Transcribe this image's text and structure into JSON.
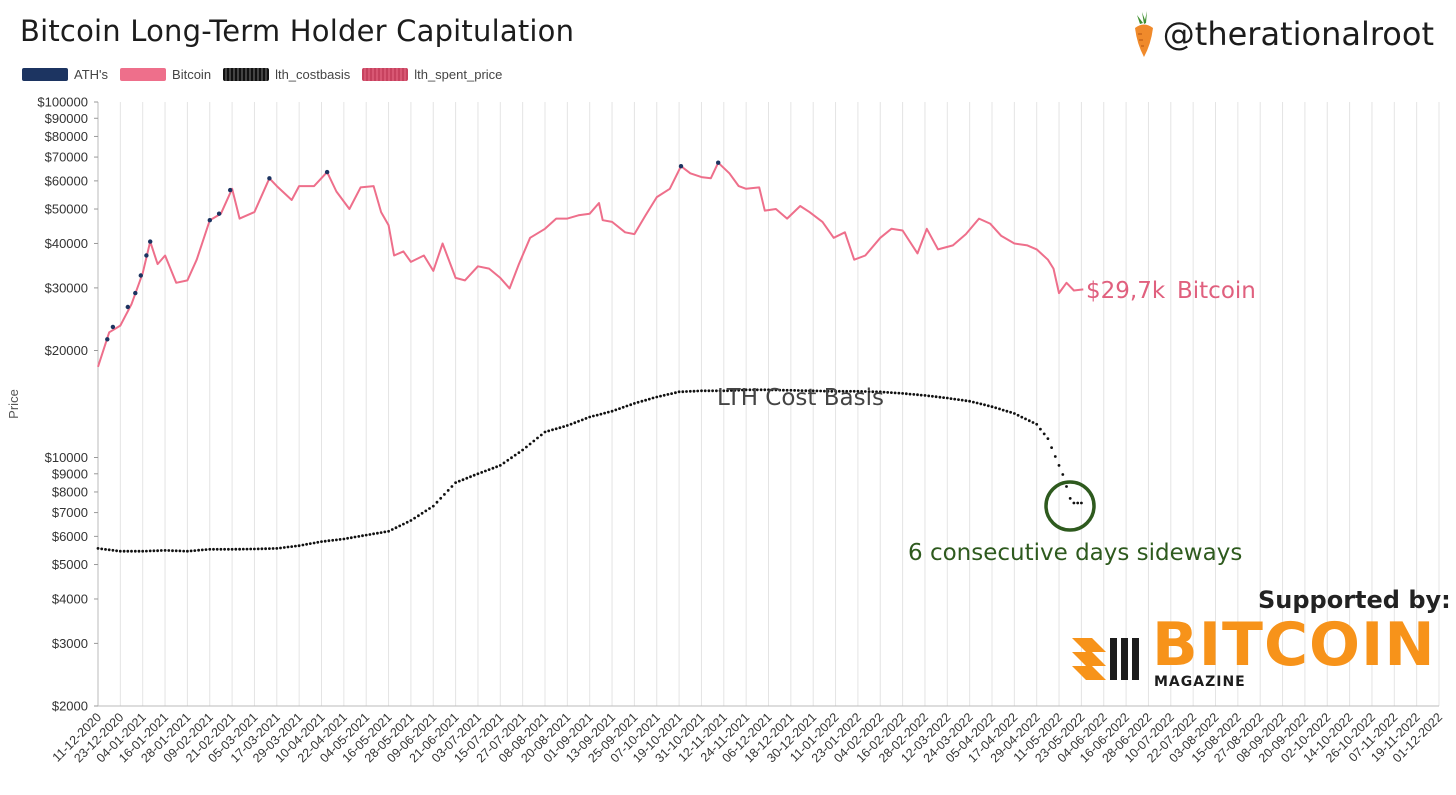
{
  "header": {
    "title": "Bitcoin Long-Term Holder Capitulation",
    "handle": "@therationalroot",
    "logo_icon": "carrot-icon"
  },
  "legend": [
    {
      "label": "ATH's",
      "color": "#1c3461"
    },
    {
      "label": "Bitcoin",
      "color": "#ee6f8b"
    },
    {
      "label": "lth_costbasis",
      "color": "#111111"
    },
    {
      "label": "lth_spent_price",
      "color": "#c7425f"
    }
  ],
  "annotations": {
    "price_label": "$29,7k",
    "price_series_label": "Bitcoin",
    "cost_basis_label": "LTH Cost Basis",
    "sideways_label": "6 consecutive days sideways"
  },
  "sponsor": {
    "supported_by": "Supported by:",
    "name": "BITCOIN",
    "sub": "MAGAZINE",
    "color": "#f7931a"
  },
  "chart_data": {
    "type": "line",
    "yscale": "log",
    "ylabel": "Price",
    "ylim": [
      2000,
      100000
    ],
    "y_ticks": [
      {
        "v": 100000,
        "label": "$100000"
      },
      {
        "v": 90000,
        "label": "$90000"
      },
      {
        "v": 80000,
        "label": "$80000"
      },
      {
        "v": 70000,
        "label": "$70000"
      },
      {
        "v": 60000,
        "label": "$60000"
      },
      {
        "v": 50000,
        "label": "$50000"
      },
      {
        "v": 40000,
        "label": "$40000"
      },
      {
        "v": 30000,
        "label": "$30000"
      },
      {
        "v": 20000,
        "label": "$20000"
      },
      {
        "v": 10000,
        "label": "$10000"
      },
      {
        "v": 9000,
        "label": "$9000"
      },
      {
        "v": 8000,
        "label": "$8000"
      },
      {
        "v": 7000,
        "label": "$7000"
      },
      {
        "v": 6000,
        "label": "$6000"
      },
      {
        "v": 5000,
        "label": "$5000"
      },
      {
        "v": 4000,
        "label": "$4000"
      },
      {
        "v": 3000,
        "label": "$3000"
      },
      {
        "v": 2000,
        "label": "$2000"
      }
    ],
    "x_ticks": [
      "11-12-2020",
      "23-12-2020",
      "04-01-2021",
      "16-01-2021",
      "28-01-2021",
      "09-02-2021",
      "21-02-2021",
      "05-03-2021",
      "17-03-2021",
      "29-03-2021",
      "10-04-2021",
      "22-04-2021",
      "04-05-2021",
      "16-05-2021",
      "28-05-2021",
      "09-06-2021",
      "21-06-2021",
      "03-07-2021",
      "15-07-2021",
      "27-07-2021",
      "08-08-2021",
      "20-08-2021",
      "01-09-2021",
      "13-09-2021",
      "25-09-2021",
      "07-10-2021",
      "19-10-2021",
      "31-10-2021",
      "12-11-2021",
      "24-11-2021",
      "06-12-2021",
      "18-12-2021",
      "30-12-2021",
      "11-01-2022",
      "23-01-2022",
      "04-02-2022",
      "16-02-2022",
      "28-02-2022",
      "12-03-2022",
      "24-03-2022",
      "05-04-2022",
      "17-04-2022",
      "29-04-2022",
      "11-05-2022",
      "23-05-2022",
      "04-06-2022",
      "16-06-2022",
      "28-06-2022",
      "10-07-2022",
      "22-07-2022",
      "03-08-2022",
      "15-08-2022",
      "27-08-2022",
      "08-09-2022",
      "20-09-2022",
      "02-10-2022",
      "14-10-2022",
      "26-10-2022",
      "07-11-2022",
      "19-11-2022",
      "01-12-2022"
    ],
    "grid": true,
    "legend_position": "top-left",
    "series": [
      {
        "name": "Bitcoin",
        "color": "#ee6f8b",
        "points": [
          [
            "11-12-2020",
            18000
          ],
          [
            "17-12-2020",
            22500
          ],
          [
            "23-12-2020",
            23500
          ],
          [
            "29-12-2020",
            27000
          ],
          [
            "04-01-2021",
            33000
          ],
          [
            "08-01-2021",
            40500
          ],
          [
            "12-01-2021",
            35000
          ],
          [
            "16-01-2021",
            37000
          ],
          [
            "22-01-2021",
            31000
          ],
          [
            "28-01-2021",
            31500
          ],
          [
            "02-02-2021",
            36000
          ],
          [
            "09-02-2021",
            46500
          ],
          [
            "15-02-2021",
            48500
          ],
          [
            "21-02-2021",
            57000
          ],
          [
            "25-02-2021",
            47000
          ],
          [
            "01-03-2021",
            48000
          ],
          [
            "05-03-2021",
            49000
          ],
          [
            "13-03-2021",
            61000
          ],
          [
            "17-03-2021",
            58000
          ],
          [
            "25-03-2021",
            53000
          ],
          [
            "29-03-2021",
            58000
          ],
          [
            "06-04-2021",
            58000
          ],
          [
            "13-04-2021",
            63500
          ],
          [
            "18-04-2021",
            56000
          ],
          [
            "25-04-2021",
            50000
          ],
          [
            "01-05-2021",
            57500
          ],
          [
            "08-05-2021",
            58000
          ],
          [
            "12-05-2021",
            49000
          ],
          [
            "16-05-2021",
            45000
          ],
          [
            "19-05-2021",
            37000
          ],
          [
            "24-05-2021",
            38000
          ],
          [
            "28-05-2021",
            35500
          ],
          [
            "04-06-2021",
            37000
          ],
          [
            "09-06-2021",
            33500
          ],
          [
            "14-06-2021",
            40000
          ],
          [
            "21-06-2021",
            32000
          ],
          [
            "26-06-2021",
            31500
          ],
          [
            "03-07-2021",
            34500
          ],
          [
            "09-07-2021",
            34000
          ],
          [
            "15-07-2021",
            32000
          ],
          [
            "20-07-2021",
            29900
          ],
          [
            "25-07-2021",
            35000
          ],
          [
            "31-07-2021",
            41500
          ],
          [
            "08-08-2021",
            44000
          ],
          [
            "14-08-2021",
            47000
          ],
          [
            "20-08-2021",
            47000
          ],
          [
            "26-08-2021",
            48000
          ],
          [
            "01-09-2021",
            48500
          ],
          [
            "06-09-2021",
            52000
          ],
          [
            "08-09-2021",
            46500
          ],
          [
            "13-09-2021",
            46000
          ],
          [
            "20-09-2021",
            43000
          ],
          [
            "25-09-2021",
            42500
          ],
          [
            "01-10-2021",
            48000
          ],
          [
            "07-10-2021",
            54000
          ],
          [
            "14-10-2021",
            57000
          ],
          [
            "20-10-2021",
            66000
          ],
          [
            "25-10-2021",
            63000
          ],
          [
            "31-10-2021",
            61500
          ],
          [
            "05-11-2021",
            61000
          ],
          [
            "09-11-2021",
            67500
          ],
          [
            "15-11-2021",
            63000
          ],
          [
            "20-11-2021",
            58000
          ],
          [
            "24-11-2021",
            57000
          ],
          [
            "01-12-2021",
            57500
          ],
          [
            "04-12-2021",
            49500
          ],
          [
            "10-12-2021",
            50000
          ],
          [
            "16-12-2021",
            47000
          ],
          [
            "23-12-2021",
            51000
          ],
          [
            "28-12-2021",
            49000
          ],
          [
            "04-01-2022",
            46000
          ],
          [
            "10-01-2022",
            41500
          ],
          [
            "16-01-2022",
            43000
          ],
          [
            "21-01-2022",
            36000
          ],
          [
            "27-01-2022",
            37000
          ],
          [
            "04-02-2022",
            41500
          ],
          [
            "10-02-2022",
            44000
          ],
          [
            "16-02-2022",
            43500
          ],
          [
            "24-02-2022",
            37500
          ],
          [
            "01-03-2022",
            44000
          ],
          [
            "07-03-2022",
            38500
          ],
          [
            "15-03-2022",
            39500
          ],
          [
            "22-03-2022",
            42500
          ],
          [
            "29-03-2022",
            47000
          ],
          [
            "04-04-2022",
            45500
          ],
          [
            "10-04-2022",
            42000
          ],
          [
            "17-04-2022",
            40000
          ],
          [
            "24-04-2022",
            39500
          ],
          [
            "29-04-2022",
            38500
          ],
          [
            "05-05-2022",
            36000
          ],
          [
            "08-05-2022",
            34000
          ],
          [
            "11-05-2022",
            29000
          ],
          [
            "15-05-2022",
            31000
          ],
          [
            "19-05-2022",
            29500
          ],
          [
            "24-05-2022",
            29700
          ]
        ]
      },
      {
        "name": "lth_costbasis",
        "color": "#111111",
        "points": [
          [
            "11-12-2020",
            5550
          ],
          [
            "23-12-2020",
            5450
          ],
          [
            "04-01-2021",
            5450
          ],
          [
            "16-01-2021",
            5480
          ],
          [
            "28-01-2021",
            5450
          ],
          [
            "09-02-2021",
            5520
          ],
          [
            "21-02-2021",
            5520
          ],
          [
            "05-03-2021",
            5530
          ],
          [
            "17-03-2021",
            5550
          ],
          [
            "29-03-2021",
            5650
          ],
          [
            "10-04-2021",
            5800
          ],
          [
            "22-04-2021",
            5900
          ],
          [
            "04-05-2021",
            6050
          ],
          [
            "16-05-2021",
            6200
          ],
          [
            "28-05-2021",
            6650
          ],
          [
            "09-06-2021",
            7300
          ],
          [
            "21-06-2021",
            8500
          ],
          [
            "03-07-2021",
            9000
          ],
          [
            "15-07-2021",
            9500
          ],
          [
            "27-07-2021",
            10500
          ],
          [
            "08-08-2021",
            11800
          ],
          [
            "20-08-2021",
            12300
          ],
          [
            "01-09-2021",
            13000
          ],
          [
            "13-09-2021",
            13500
          ],
          [
            "25-09-2021",
            14200
          ],
          [
            "07-10-2021",
            14800
          ],
          [
            "19-10-2021",
            15300
          ],
          [
            "31-10-2021",
            15400
          ],
          [
            "12-11-2021",
            15400
          ],
          [
            "24-11-2021",
            15500
          ],
          [
            "06-12-2021",
            15500
          ],
          [
            "18-12-2021",
            15450
          ],
          [
            "30-12-2021",
            15400
          ],
          [
            "11-01-2022",
            15350
          ],
          [
            "23-01-2022",
            15350
          ],
          [
            "04-02-2022",
            15300
          ],
          [
            "16-02-2022",
            15150
          ],
          [
            "28-02-2022",
            14950
          ],
          [
            "12-03-2022",
            14700
          ],
          [
            "24-03-2022",
            14400
          ],
          [
            "05-04-2022",
            13900
          ],
          [
            "17-04-2022",
            13300
          ],
          [
            "29-04-2022",
            12400
          ],
          [
            "05-05-2022",
            11300
          ],
          [
            "11-05-2022",
            9500
          ],
          [
            "14-05-2022",
            8700
          ],
          [
            "16-05-2022",
            7900
          ],
          [
            "18-05-2022",
            7450
          ],
          [
            "24-05-2022",
            7450
          ]
        ]
      },
      {
        "name": "ATH's",
        "color": "#1c3461",
        "points": [
          [
            "16-12-2020",
            21500
          ],
          [
            "19-12-2020",
            23300
          ],
          [
            "27-12-2020",
            26500
          ],
          [
            "31-12-2020",
            29000
          ],
          [
            "03-01-2021",
            32500
          ],
          [
            "06-01-2021",
            37000
          ],
          [
            "08-01-2021",
            40500
          ],
          [
            "09-02-2021",
            46500
          ],
          [
            "14-02-2021",
            48500
          ],
          [
            "20-02-2021",
            56500
          ],
          [
            "13-03-2021",
            61000
          ],
          [
            "13-04-2021",
            63500
          ],
          [
            "20-10-2021",
            66000
          ],
          [
            "09-11-2021",
            67500
          ]
        ]
      }
    ]
  }
}
